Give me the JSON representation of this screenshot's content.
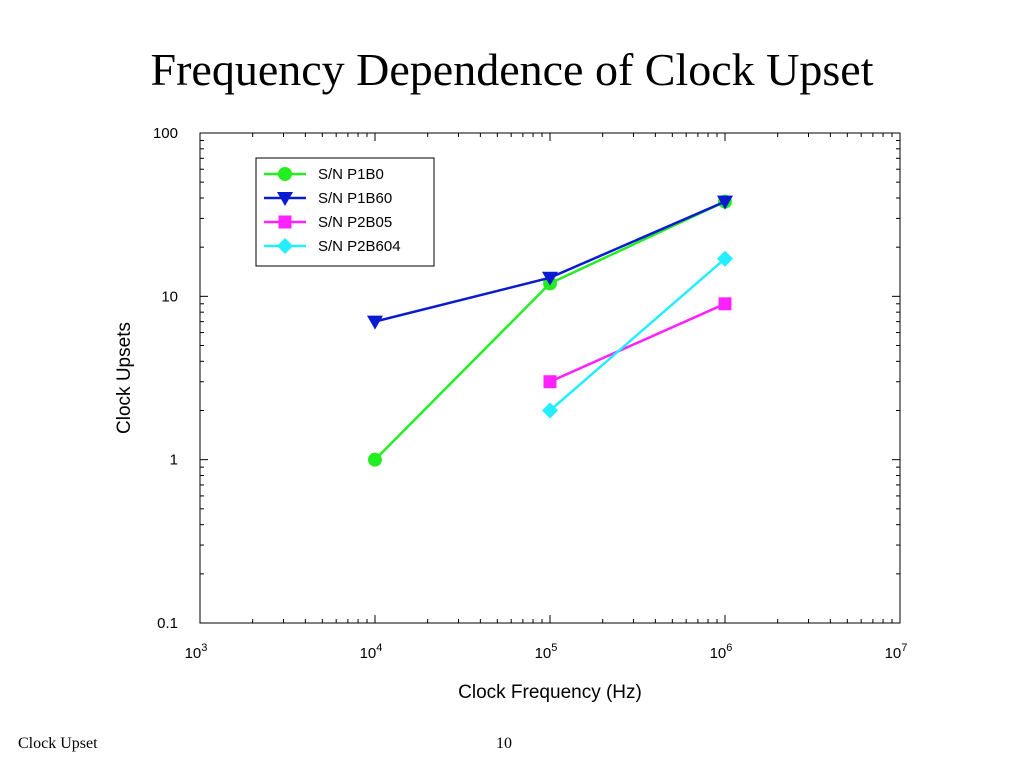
{
  "slide": {
    "title": "Frequency Dependence of Clock Upset",
    "footer_left": "Clock Upset",
    "page_number": "10"
  },
  "chart_data": {
    "type": "line",
    "title": "",
    "xlabel": "Clock Frequency (Hz)",
    "ylabel": "Clock Upsets",
    "x_scale": "log",
    "y_scale": "log",
    "xlim": [
      1000,
      10000000
    ],
    "ylim": [
      0.1,
      100
    ],
    "x_ticks": [
      {
        "value": 1000,
        "base": "10",
        "exp": "3"
      },
      {
        "value": 10000,
        "base": "10",
        "exp": "4"
      },
      {
        "value": 100000,
        "base": "10",
        "exp": "5"
      },
      {
        "value": 1000000,
        "base": "10",
        "exp": "6"
      },
      {
        "value": 10000000,
        "base": "10",
        "exp": "7"
      }
    ],
    "y_ticks": [
      {
        "value": 0.1,
        "label": "0.1"
      },
      {
        "value": 1,
        "label": "1"
      },
      {
        "value": 10,
        "label": "10"
      },
      {
        "value": 100,
        "label": "100"
      }
    ],
    "grid": false,
    "legend_position": "top-left",
    "series": [
      {
        "name": "S/N P1B0",
        "color": "#22ee22",
        "marker": "circle",
        "points": [
          [
            10000,
            1
          ],
          [
            100000,
            12
          ],
          [
            1000000,
            38
          ]
        ]
      },
      {
        "name": "S/N P1B60",
        "color": "#0a1ad0",
        "marker": "triangle-down",
        "points": [
          [
            10000,
            7
          ],
          [
            100000,
            13
          ],
          [
            1000000,
            38
          ]
        ]
      },
      {
        "name": "S/N P2B05",
        "color": "#ff22ff",
        "marker": "square",
        "points": [
          [
            100000,
            3
          ],
          [
            1000000,
            9
          ]
        ]
      },
      {
        "name": "S/N P2B604",
        "color": "#22eeff",
        "marker": "diamond",
        "points": [
          [
            100000,
            2
          ],
          [
            1000000,
            17
          ]
        ]
      }
    ]
  }
}
